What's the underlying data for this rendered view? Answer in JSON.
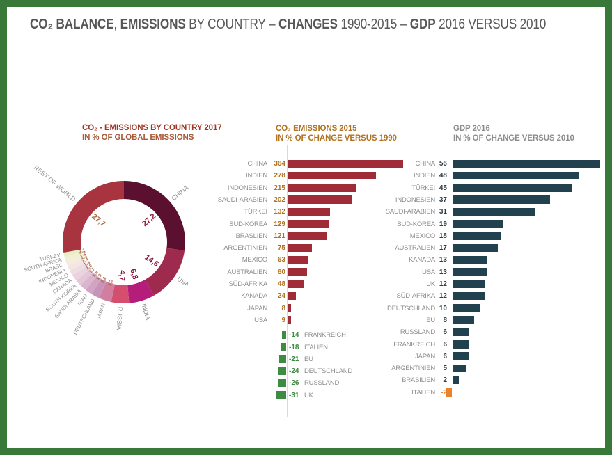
{
  "header": {
    "title_segments": [
      {
        "text": "CO₂ BALANCE",
        "bold": true
      },
      {
        "text": ", ",
        "bold": false
      },
      {
        "text": "EMISSIONS",
        "bold": true
      },
      {
        "text": " BY COUNTRY – ",
        "bold": false
      },
      {
        "text": "CHANGES",
        "bold": true
      },
      {
        "text": " 1990-2015 – ",
        "bold": false
      },
      {
        "text": "GDP",
        "bold": true
      },
      {
        "text": " 2016 VERSUS 2010",
        "bold": false
      }
    ]
  },
  "colors": {
    "frame_green": "#38793a",
    "header_gray": "#58585a",
    "label_gray": "#8d8d8f",
    "mid_bar_red": "#a02c38",
    "mid_value_amber": "#b0721f",
    "negative_green": "#3e8b43",
    "right_bar_teal": "#21414f",
    "right_value_dark": "#2d3c45",
    "negative_orange": "#e8822c",
    "donut_value_dark": "#8a1438",
    "donut_value_rust": "#ab6a45"
  },
  "chart_data": [
    {
      "type": "pie",
      "title": "CO₂ - EMISSIONS BY COUNTRY 2017",
      "subtitle": "IN % OF GLOBAL EMISSIONS",
      "unit": "%",
      "segments": [
        {
          "label": "CHINA",
          "value": 27.2,
          "display": "27,2",
          "color": "#5c1030",
          "size": "big",
          "value_color": "#8a1438"
        },
        {
          "label": "USA",
          "value": 14.6,
          "display": "14,6",
          "color": "#9e2b4d",
          "size": "big",
          "value_color": "#8a1438"
        },
        {
          "label": "INDIA",
          "value": 6.8,
          "display": "6,8",
          "color": "#b41e7a",
          "size": "big",
          "value_color": "#8a1438"
        },
        {
          "label": "RUSSIA",
          "value": 4.7,
          "display": "4,7",
          "color": "#d64e6e",
          "size": "big",
          "value_color": "#8a1438"
        },
        {
          "label": "JAPAN",
          "value": 3.3,
          "display": "3,3",
          "color": "#d07fa0",
          "size": "small",
          "value_color": "#ab6a45"
        },
        {
          "label": "DEUTSCHLAND",
          "value": 2.2,
          "display": "2,2",
          "color": "#c893b9",
          "size": "small",
          "value_color": "#ab6a45"
        },
        {
          "label": "IRAN",
          "value": 1.9,
          "display": "1,9",
          "color": "#d2a3c3",
          "size": "small",
          "value_color": "#ab6a45"
        },
        {
          "label": "SAUDI ARABIA",
          "value": 1.8,
          "display": "1,8",
          "color": "#dbb5cd",
          "size": "small",
          "value_color": "#ab6a45"
        },
        {
          "label": "SOUTH KOREA",
          "value": 1.7,
          "display": "1,7",
          "color": "#e3c6d7",
          "size": "small",
          "value_color": "#ab6a45"
        },
        {
          "label": "CANADA",
          "value": 1.6,
          "display": "1,6",
          "color": "#ead3de",
          "size": "small",
          "value_color": "#ab6a45"
        },
        {
          "label": "MEXICO",
          "value": 1.4,
          "display": "1,4",
          "color": "#efdde4",
          "size": "small",
          "value_color": "#ab6a45"
        },
        {
          "label": "INDONESIA",
          "value": 1.4,
          "display": "1,4",
          "color": "#f3e6e3",
          "size": "small",
          "value_color": "#ab6a45"
        },
        {
          "label": "BRASIL",
          "value": 1.3,
          "display": "1,3",
          "color": "#f5eddb",
          "size": "small",
          "value_color": "#ab6a45"
        },
        {
          "label": "SOUTH AFRICA",
          "value": 1.2,
          "display": "1,2",
          "color": "#f0f0d2",
          "size": "small",
          "value_color": "#ab6a45"
        },
        {
          "label": "TURKEY",
          "value": 1.1,
          "display": "1,1",
          "color": "#e9eec6",
          "size": "small",
          "value_color": "#ab6a45"
        },
        {
          "label": "REST OF WORLD",
          "value": 27.7,
          "display": "27,7",
          "color": "#a7343e",
          "size": "big",
          "value_color": "#ab6a45"
        }
      ]
    },
    {
      "type": "bar",
      "orientation": "horizontal",
      "title": "CO₂ EMISSIONS 2015",
      "subtitle": "IN % OF CHANGE VERSUS 1990",
      "unit": "% change vs 1990",
      "categories": [
        "CHINA",
        "INDIEN",
        "INDONESIEN",
        "SAUDI-ARABIEN",
        "TÜRKEI",
        "SÜD-KOREA",
        "BRASLIEN",
        "ARGENTINIEN",
        "MEXICO",
        "AUSTRALIEN",
        "SÜD-AFRIKA",
        "KANADA",
        "JAPAN",
        "USA",
        "FRANKREICH",
        "ITALIEN",
        "EU",
        "DEUTSCHLAND",
        "RUSSLAND",
        "UK"
      ],
      "values": [
        364,
        278,
        215,
        202,
        132,
        129,
        121,
        75,
        63,
        60,
        48,
        24,
        8,
        9,
        -14,
        -18,
        -21,
        -24,
        -26,
        -31
      ],
      "bar_color": "#a02c38",
      "negative_bar_color": "#3e8b43",
      "value_color": "#b0721f",
      "negative_value_color": "#3e8b43"
    },
    {
      "type": "bar",
      "orientation": "horizontal",
      "title": "GDP 2016",
      "subtitle": "IN % OF CHANGE VERSUS 2010",
      "unit": "% change vs 2010",
      "categories": [
        "CHINA",
        "INDIEN",
        "TÜRKEI",
        "INDONESIEN",
        "SAUDI-ARABIEN",
        "SÜD-KOREA",
        "MEXICO",
        "AUSTRALIEN",
        "KANADA",
        "USA",
        "UK",
        "SÜD-AFRIKA",
        "DEUTSCHLAND",
        "EU",
        "RUSSLAND",
        "FRANKREICH",
        "JAPAN",
        "ARGENTINIEN",
        "BRASILIEN",
        "ITALIEN"
      ],
      "values": [
        56,
        48,
        45,
        37,
        31,
        19,
        18,
        17,
        13,
        13,
        12,
        12,
        10,
        8,
        6,
        6,
        6,
        5,
        2,
        -2
      ],
      "bar_color": "#21414f",
      "negative_bar_color": "#e8822c",
      "value_color": "#2d3c45",
      "negative_value_color": "#e8822c"
    }
  ]
}
